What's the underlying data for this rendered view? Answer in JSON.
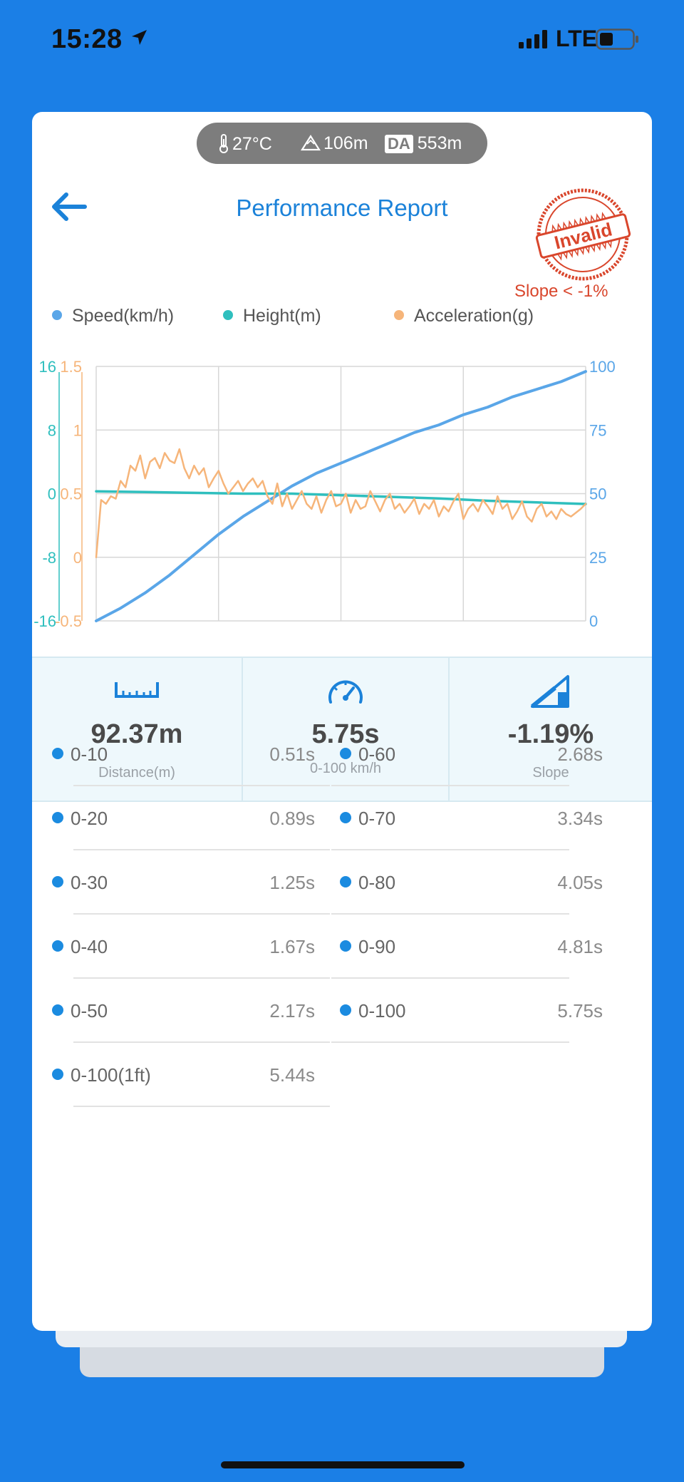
{
  "status_bar": {
    "time": "15:28",
    "network": "LTE"
  },
  "environment": {
    "temperature": "27°C",
    "altitude": "106m",
    "da_badge": "DA",
    "density_altitude": "553m"
  },
  "header": {
    "title": "Performance Report"
  },
  "stamp": {
    "text": "Invalid",
    "color": "#d9462c"
  },
  "slope_note": "Slope < -1%",
  "colors": {
    "speed": "#5aa6e8",
    "height": "#2fbfbe",
    "acceleration": "#f6b57a",
    "accent": "#1b82d9"
  },
  "legend": [
    {
      "label": "Speed(km/h)"
    },
    {
      "label": "Height(m)"
    },
    {
      "label": "Acceleration(g)"
    }
  ],
  "chart_data": {
    "type": "line",
    "grid": true,
    "legend_position": "top",
    "axes": {
      "left_outer": {
        "ticks": [
          "16",
          "8",
          "0",
          "-8",
          "-16"
        ],
        "ylim": [
          -16,
          16
        ],
        "series": "Height(m)"
      },
      "left_inner": {
        "ticks": [
          "1.5",
          "1",
          "0.5",
          "0",
          "-0.5"
        ],
        "ylim": [
          -0.5,
          1.5
        ],
        "series": "Acceleration(g)"
      },
      "right": {
        "ticks": [
          "100",
          "75",
          "50",
          "25",
          "0"
        ],
        "ylim": [
          0,
          100
        ],
        "series": "Speed(km/h)"
      }
    },
    "x": {
      "xlim": [
        0,
        100
      ]
    },
    "series": [
      {
        "name": "Speed(km/h)",
        "axis": "right",
        "x": [
          0,
          5,
          10,
          15,
          20,
          25,
          30,
          35,
          40,
          45,
          50,
          55,
          60,
          65,
          70,
          75,
          80,
          85,
          90,
          95,
          100
        ],
        "values": [
          0,
          5,
          11,
          18,
          26,
          34,
          41,
          47,
          53,
          58,
          62,
          66,
          70,
          74,
          77,
          81,
          84,
          88,
          91,
          94,
          98
        ]
      },
      {
        "name": "Height(m)",
        "axis": "left_outer",
        "x": [
          0,
          10,
          20,
          30,
          40,
          50,
          60,
          70,
          80,
          90,
          100
        ],
        "values": [
          0.3,
          0.2,
          0.1,
          0,
          0,
          -0.2,
          -0.4,
          -0.6,
          -0.9,
          -1.1,
          -1.3
        ]
      },
      {
        "name": "Acceleration(g)",
        "axis": "left_inner",
        "x": [
          0,
          1,
          2,
          3,
          4,
          5,
          6,
          7,
          8,
          9,
          10,
          11,
          12,
          13,
          14,
          15,
          16,
          17,
          18,
          19,
          20,
          21,
          22,
          23,
          24,
          25,
          26,
          27,
          28,
          29,
          30,
          31,
          32,
          33,
          34,
          35,
          36,
          37,
          38,
          39,
          40,
          41,
          42,
          43,
          44,
          45,
          46,
          47,
          48,
          49,
          50,
          51,
          52,
          53,
          54,
          55,
          56,
          57,
          58,
          59,
          60,
          61,
          62,
          63,
          64,
          65,
          66,
          67,
          68,
          69,
          70,
          71,
          72,
          73,
          74,
          75,
          76,
          77,
          78,
          79,
          80,
          81,
          82,
          83,
          84,
          85,
          86,
          87,
          88,
          89,
          90,
          91,
          92,
          93,
          94,
          95,
          96,
          97,
          98,
          99,
          100
        ],
        "values": [
          0,
          0.45,
          0.42,
          0.48,
          0.46,
          0.6,
          0.55,
          0.72,
          0.68,
          0.8,
          0.62,
          0.75,
          0.78,
          0.7,
          0.82,
          0.76,
          0.74,
          0.85,
          0.7,
          0.62,
          0.72,
          0.65,
          0.7,
          0.55,
          0.62,
          0.68,
          0.58,
          0.5,
          0.55,
          0.6,
          0.52,
          0.58,
          0.62,
          0.55,
          0.6,
          0.48,
          0.42,
          0.58,
          0.4,
          0.5,
          0.38,
          0.45,
          0.52,
          0.42,
          0.38,
          0.48,
          0.35,
          0.45,
          0.52,
          0.4,
          0.42,
          0.5,
          0.35,
          0.45,
          0.38,
          0.4,
          0.52,
          0.44,
          0.36,
          0.45,
          0.5,
          0.38,
          0.42,
          0.35,
          0.4,
          0.46,
          0.34,
          0.42,
          0.38,
          0.45,
          0.32,
          0.4,
          0.36,
          0.44,
          0.5,
          0.3,
          0.38,
          0.42,
          0.36,
          0.45,
          0.4,
          0.34,
          0.48,
          0.38,
          0.42,
          0.3,
          0.36,
          0.44,
          0.32,
          0.28,
          0.38,
          0.42,
          0.32,
          0.36,
          0.3,
          0.38,
          0.34,
          0.32,
          0.35,
          0.38,
          0.42
        ]
      }
    ]
  },
  "stats": [
    {
      "icon": "ruler-icon",
      "value": "92.37m",
      "label": "Distance(m)"
    },
    {
      "icon": "speedometer-icon",
      "value": "5.75s",
      "label": "0-100 km/h"
    },
    {
      "icon": "slope-icon",
      "value": "-1.19%",
      "label": "Slope"
    }
  ],
  "times": [
    {
      "label": "0-10",
      "value": "0.51s"
    },
    {
      "label": "0-60",
      "value": "2.68s"
    },
    {
      "label": "0-20",
      "value": "0.89s"
    },
    {
      "label": "0-70",
      "value": "3.34s"
    },
    {
      "label": "0-30",
      "value": "1.25s"
    },
    {
      "label": "0-80",
      "value": "4.05s"
    },
    {
      "label": "0-40",
      "value": "1.67s"
    },
    {
      "label": "0-90",
      "value": "4.81s"
    },
    {
      "label": "0-50",
      "value": "2.17s"
    },
    {
      "label": "0-100",
      "value": "5.75s"
    },
    {
      "label": "0-100(1ft)",
      "value": "5.44s"
    }
  ]
}
